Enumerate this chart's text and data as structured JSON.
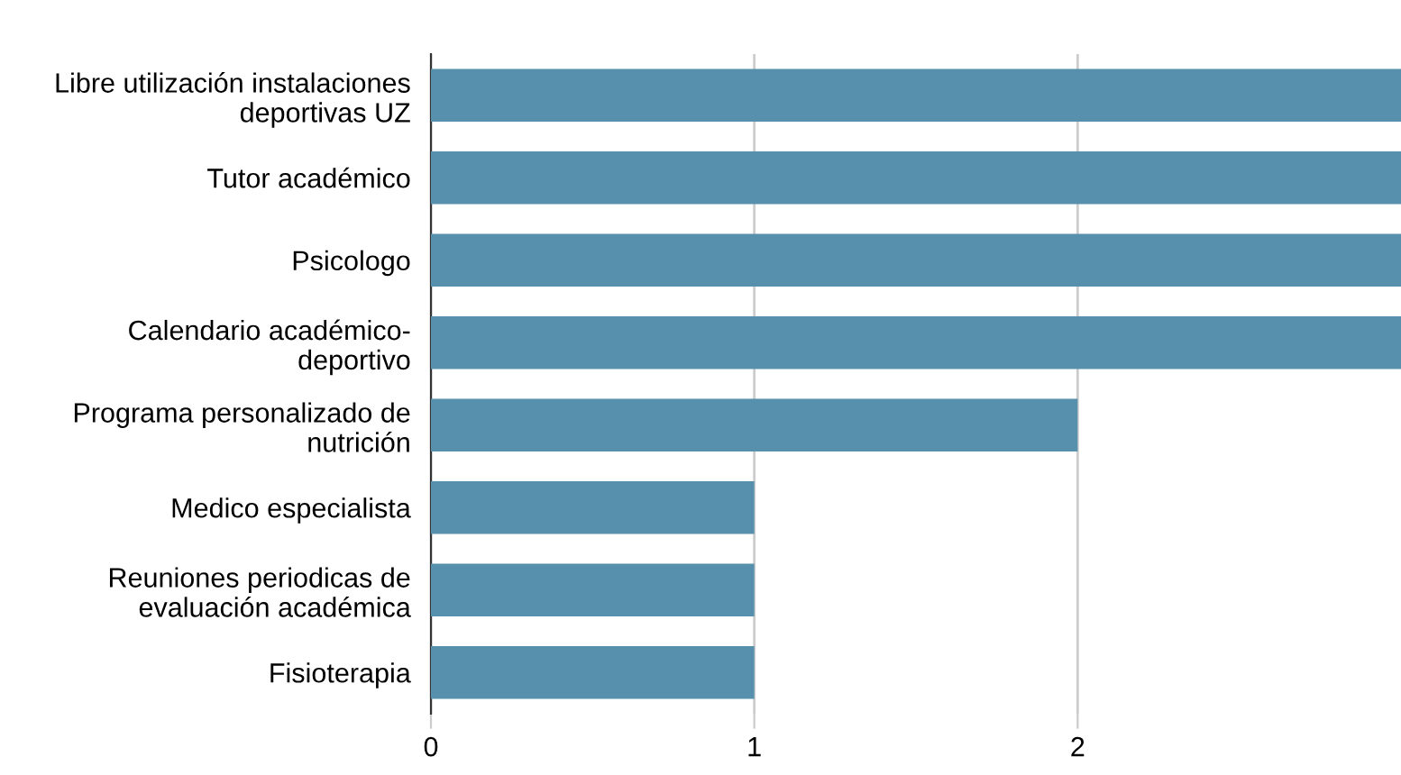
{
  "chart_data": {
    "type": "bar",
    "orientation": "horizontal",
    "categories": [
      "Libre utilización instalaciones\ndeportivas UZ",
      "Tutor académico",
      "Psicologo",
      "Calendario académico-\ndeportivo",
      "Programa personalizado de\nnutrición",
      "Medico especialista",
      "Reuniones periodicas de\nevaluación académica",
      "Fisioterapia"
    ],
    "values": [
      3,
      3,
      3,
      3,
      2,
      1,
      1,
      1
    ],
    "color": "#5790ad",
    "xlim": [
      0,
      3
    ],
    "xticks": [
      0,
      1,
      2
    ],
    "grid": "x",
    "legend": false
  }
}
